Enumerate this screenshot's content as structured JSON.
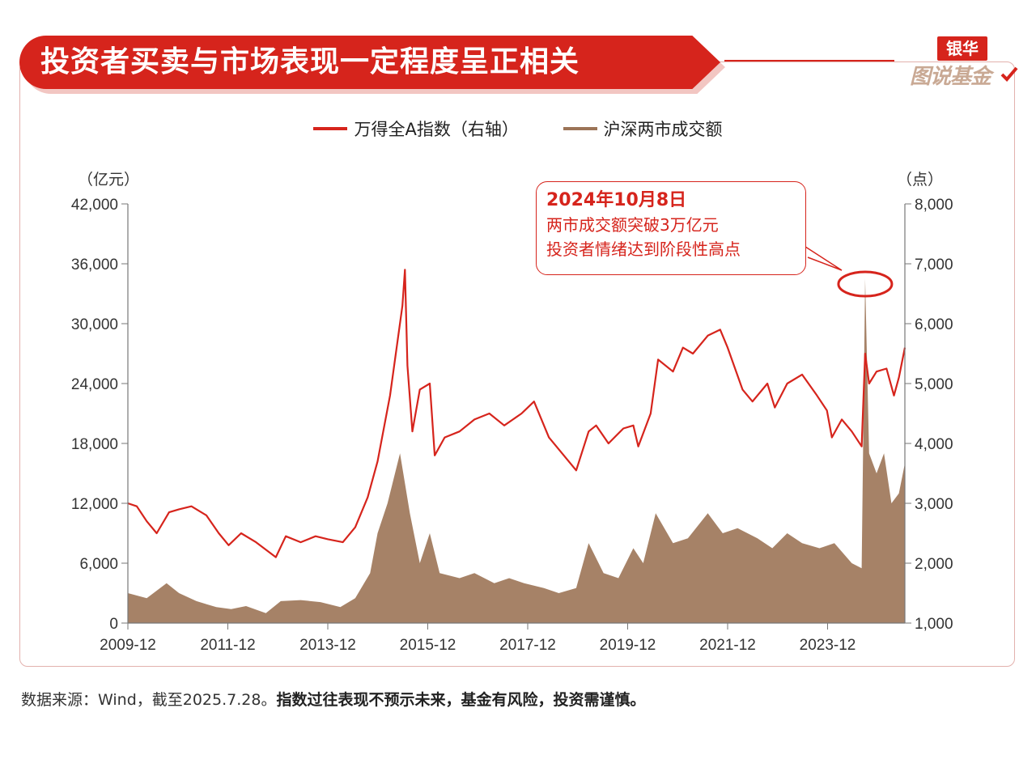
{
  "title": "投资者买卖与市场表现一定程度呈正相关",
  "logo": {
    "top": "银华",
    "bottom": "图说基金"
  },
  "colors": {
    "red": "#d6241c",
    "brown": "#9c7457",
    "grid": "#999999"
  },
  "legend": [
    {
      "label": "万得全A指数（右轴）",
      "color": "#d6241c"
    },
    {
      "label": "沪深两市成交额",
      "color": "#9c7457"
    }
  ],
  "callout": {
    "title": "2024年10月8日",
    "line1": "两市成交额突破3万亿元",
    "line2": "投资者情绪达到阶段性高点"
  },
  "footer": {
    "normal": "数据来源：Wind，截至2025.7.28。",
    "bold": "指数过往表现不预示未来，基金有风险，投资需谨慎。"
  },
  "chart_data": {
    "type": "line",
    "x_tick_labels": [
      "2009-12",
      "2011-12",
      "2013-12",
      "2015-12",
      "2017-12",
      "2019-12",
      "2021-12",
      "2023-12"
    ],
    "left_axis": {
      "unit": "（亿元）",
      "ticks": [
        "0",
        "6,000",
        "12,000",
        "18,000",
        "24,000",
        "30,000",
        "36,000",
        "42,000"
      ],
      "ylim": [
        0,
        42000
      ]
    },
    "right_axis": {
      "unit": "（点）",
      "ticks": [
        "1,000",
        "2,000",
        "3,000",
        "4,000",
        "5,000",
        "6,000",
        "7,000",
        "8,000"
      ],
      "ylim": [
        1000,
        8000
      ]
    },
    "x_range": [
      2009.92,
      2025.57
    ],
    "series": [
      {
        "name": "万得全A指数（右轴）",
        "axis": "right",
        "type": "line",
        "points": [
          [
            2009.92,
            3000
          ],
          [
            2010.1,
            2950
          ],
          [
            2010.3,
            2700
          ],
          [
            2010.5,
            2500
          ],
          [
            2010.75,
            2850
          ],
          [
            2010.95,
            2900
          ],
          [
            2011.2,
            2950
          ],
          [
            2011.5,
            2800
          ],
          [
            2011.75,
            2500
          ],
          [
            2011.95,
            2300
          ],
          [
            2012.2,
            2500
          ],
          [
            2012.5,
            2350
          ],
          [
            2012.9,
            2100
          ],
          [
            2013.1,
            2450
          ],
          [
            2013.4,
            2350
          ],
          [
            2013.7,
            2450
          ],
          [
            2013.95,
            2400
          ],
          [
            2014.25,
            2350
          ],
          [
            2014.5,
            2600
          ],
          [
            2014.75,
            3100
          ],
          [
            2014.95,
            3700
          ],
          [
            2015.2,
            4800
          ],
          [
            2015.45,
            6300
          ],
          [
            2015.5,
            6900
          ],
          [
            2015.55,
            5300
          ],
          [
            2015.65,
            4200
          ],
          [
            2015.8,
            4900
          ],
          [
            2016.0,
            5000
          ],
          [
            2016.1,
            3800
          ],
          [
            2016.3,
            4100
          ],
          [
            2016.6,
            4200
          ],
          [
            2016.9,
            4400
          ],
          [
            2017.2,
            4500
          ],
          [
            2017.5,
            4300
          ],
          [
            2017.85,
            4500
          ],
          [
            2018.1,
            4700
          ],
          [
            2018.4,
            4100
          ],
          [
            2018.7,
            3800
          ],
          [
            2018.95,
            3550
          ],
          [
            2019.2,
            4200
          ],
          [
            2019.35,
            4300
          ],
          [
            2019.6,
            4000
          ],
          [
            2019.9,
            4250
          ],
          [
            2020.1,
            4300
          ],
          [
            2020.2,
            3950
          ],
          [
            2020.45,
            4500
          ],
          [
            2020.6,
            5400
          ],
          [
            2020.9,
            5200
          ],
          [
            2021.1,
            5600
          ],
          [
            2021.3,
            5500
          ],
          [
            2021.6,
            5800
          ],
          [
            2021.85,
            5900
          ],
          [
            2022.0,
            5600
          ],
          [
            2022.3,
            4900
          ],
          [
            2022.5,
            4700
          ],
          [
            2022.8,
            5000
          ],
          [
            2022.95,
            4600
          ],
          [
            2023.2,
            5000
          ],
          [
            2023.5,
            5150
          ],
          [
            2023.8,
            4800
          ],
          [
            2024.0,
            4550
          ],
          [
            2024.1,
            4100
          ],
          [
            2024.3,
            4400
          ],
          [
            2024.5,
            4200
          ],
          [
            2024.7,
            3950
          ],
          [
            2024.77,
            5500
          ],
          [
            2024.85,
            5000
          ],
          [
            2025.0,
            5200
          ],
          [
            2025.2,
            5250
          ],
          [
            2025.35,
            4800
          ],
          [
            2025.45,
            5100
          ],
          [
            2025.57,
            5600
          ]
        ]
      },
      {
        "name": "沪深两市成交额",
        "axis": "left",
        "type": "area",
        "points": [
          [
            2009.92,
            3000
          ],
          [
            2010.3,
            2500
          ],
          [
            2010.7,
            4000
          ],
          [
            2010.95,
            3000
          ],
          [
            2011.3,
            2200
          ],
          [
            2011.7,
            1600
          ],
          [
            2012.0,
            1400
          ],
          [
            2012.3,
            1700
          ],
          [
            2012.7,
            1000
          ],
          [
            2013.0,
            2200
          ],
          [
            2013.4,
            2300
          ],
          [
            2013.8,
            2100
          ],
          [
            2014.2,
            1600
          ],
          [
            2014.5,
            2500
          ],
          [
            2014.8,
            5000
          ],
          [
            2014.95,
            9000
          ],
          [
            2015.15,
            12000
          ],
          [
            2015.4,
            17000
          ],
          [
            2015.6,
            11000
          ],
          [
            2015.8,
            6000
          ],
          [
            2016.0,
            9000
          ],
          [
            2016.2,
            5000
          ],
          [
            2016.6,
            4500
          ],
          [
            2016.9,
            5000
          ],
          [
            2017.3,
            4000
          ],
          [
            2017.6,
            4500
          ],
          [
            2017.9,
            4000
          ],
          [
            2018.3,
            3500
          ],
          [
            2018.6,
            3000
          ],
          [
            2018.95,
            3500
          ],
          [
            2019.2,
            8000
          ],
          [
            2019.5,
            5000
          ],
          [
            2019.8,
            4500
          ],
          [
            2020.1,
            7500
          ],
          [
            2020.3,
            6000
          ],
          [
            2020.55,
            11000
          ],
          [
            2020.9,
            8000
          ],
          [
            2021.2,
            8500
          ],
          [
            2021.6,
            11000
          ],
          [
            2021.9,
            9000
          ],
          [
            2022.2,
            9500
          ],
          [
            2022.6,
            8500
          ],
          [
            2022.9,
            7500
          ],
          [
            2023.2,
            9000
          ],
          [
            2023.5,
            8000
          ],
          [
            2023.85,
            7500
          ],
          [
            2024.15,
            8000
          ],
          [
            2024.5,
            6000
          ],
          [
            2024.7,
            5500
          ],
          [
            2024.77,
            34500
          ],
          [
            2024.85,
            17000
          ],
          [
            2025.0,
            15000
          ],
          [
            2025.15,
            17000
          ],
          [
            2025.3,
            12000
          ],
          [
            2025.45,
            13000
          ],
          [
            2025.57,
            16000
          ]
        ]
      }
    ],
    "highlight": {
      "x": 2024.77,
      "label": "2024年10月8日"
    }
  }
}
